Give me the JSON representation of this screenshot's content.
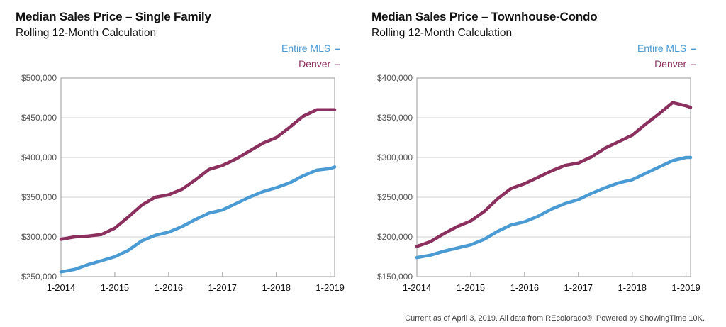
{
  "colors": {
    "entire_mls": "#4a9ad4",
    "denver": "#8b2f5e"
  },
  "footer": "Current as of April 3, 2019. All data from REcolorado®. Powered by ShowingTime 10K.",
  "chart_data": [
    {
      "type": "line",
      "title": "Median Sales Price – Single Family",
      "subtitle": "Rolling 12-Month Calculation",
      "x_ticks": [
        "1-2014",
        "1-2015",
        "1-2016",
        "1-2017",
        "1-2018",
        "1-2019"
      ],
      "y_ticks": [
        "$250,000",
        "$300,000",
        "$350,000",
        "$400,000",
        "$450,000",
        "$500,000"
      ],
      "xlim": [
        "2014-01",
        "2019-02"
      ],
      "ylim": [
        250000,
        500000
      ],
      "legend_position": "top-right",
      "grid": "horizontal",
      "series": [
        {
          "name": "Entire MLS",
          "color": "#4a9ad4",
          "x": [
            "2014-01",
            "2014-04",
            "2014-07",
            "2014-10",
            "2015-01",
            "2015-04",
            "2015-07",
            "2015-10",
            "2016-01",
            "2016-04",
            "2016-07",
            "2016-10",
            "2017-01",
            "2017-04",
            "2017-07",
            "2017-10",
            "2018-01",
            "2018-04",
            "2018-07",
            "2018-10",
            "2019-01",
            "2019-02"
          ],
          "values": [
            256000,
            259000,
            265000,
            270000,
            275000,
            283000,
            295000,
            302000,
            306000,
            313000,
            322000,
            330000,
            334000,
            342000,
            350000,
            357000,
            362000,
            368000,
            377000,
            384000,
            386000,
            388000
          ]
        },
        {
          "name": "Denver",
          "color": "#8b2f5e",
          "x": [
            "2014-01",
            "2014-04",
            "2014-07",
            "2014-10",
            "2015-01",
            "2015-04",
            "2015-07",
            "2015-10",
            "2016-01",
            "2016-04",
            "2016-07",
            "2016-10",
            "2017-01",
            "2017-04",
            "2017-07",
            "2017-10",
            "2018-01",
            "2018-04",
            "2018-07",
            "2018-10",
            "2019-01",
            "2019-02"
          ],
          "values": [
            297000,
            300000,
            301000,
            303000,
            311000,
            325000,
            340000,
            350000,
            353000,
            360000,
            372000,
            385000,
            390000,
            398000,
            408000,
            418000,
            425000,
            438000,
            452000,
            460000,
            460000,
            460000
          ]
        }
      ]
    },
    {
      "type": "line",
      "title": "Median Sales Price – Townhouse-Condo",
      "subtitle": "Rolling 12-Month Calculation",
      "x_ticks": [
        "1-2014",
        "1-2015",
        "1-2016",
        "1-2017",
        "1-2018",
        "1-2019"
      ],
      "y_ticks": [
        "$150,000",
        "$200,000",
        "$250,000",
        "$300,000",
        "$350,000",
        "$400,000"
      ],
      "xlim": [
        "2014-01",
        "2019-02"
      ],
      "ylim": [
        150000,
        400000
      ],
      "legend_position": "top-right",
      "grid": "horizontal",
      "series": [
        {
          "name": "Entire MLS",
          "color": "#4a9ad4",
          "x": [
            "2014-01",
            "2014-04",
            "2014-07",
            "2014-10",
            "2015-01",
            "2015-04",
            "2015-07",
            "2015-10",
            "2016-01",
            "2016-04",
            "2016-07",
            "2016-10",
            "2017-01",
            "2017-04",
            "2017-07",
            "2017-10",
            "2018-01",
            "2018-04",
            "2018-07",
            "2018-10",
            "2019-01",
            "2019-02"
          ],
          "values": [
            174000,
            177000,
            182000,
            186000,
            190000,
            197000,
            207000,
            215000,
            219000,
            226000,
            235000,
            242000,
            247000,
            255000,
            262000,
            268000,
            272000,
            280000,
            288000,
            296000,
            300000,
            300000
          ]
        },
        {
          "name": "Denver",
          "color": "#8b2f5e",
          "x": [
            "2014-01",
            "2014-04",
            "2014-07",
            "2014-10",
            "2015-01",
            "2015-04",
            "2015-07",
            "2015-10",
            "2016-01",
            "2016-04",
            "2016-07",
            "2016-10",
            "2017-01",
            "2017-04",
            "2017-07",
            "2017-10",
            "2018-01",
            "2018-04",
            "2018-07",
            "2018-10",
            "2019-01",
            "2019-02"
          ],
          "values": [
            188000,
            194000,
            204000,
            213000,
            220000,
            232000,
            248000,
            261000,
            267000,
            275000,
            283000,
            290000,
            293000,
            301000,
            312000,
            320000,
            328000,
            342000,
            355000,
            369000,
            365000,
            363000
          ]
        }
      ]
    }
  ]
}
